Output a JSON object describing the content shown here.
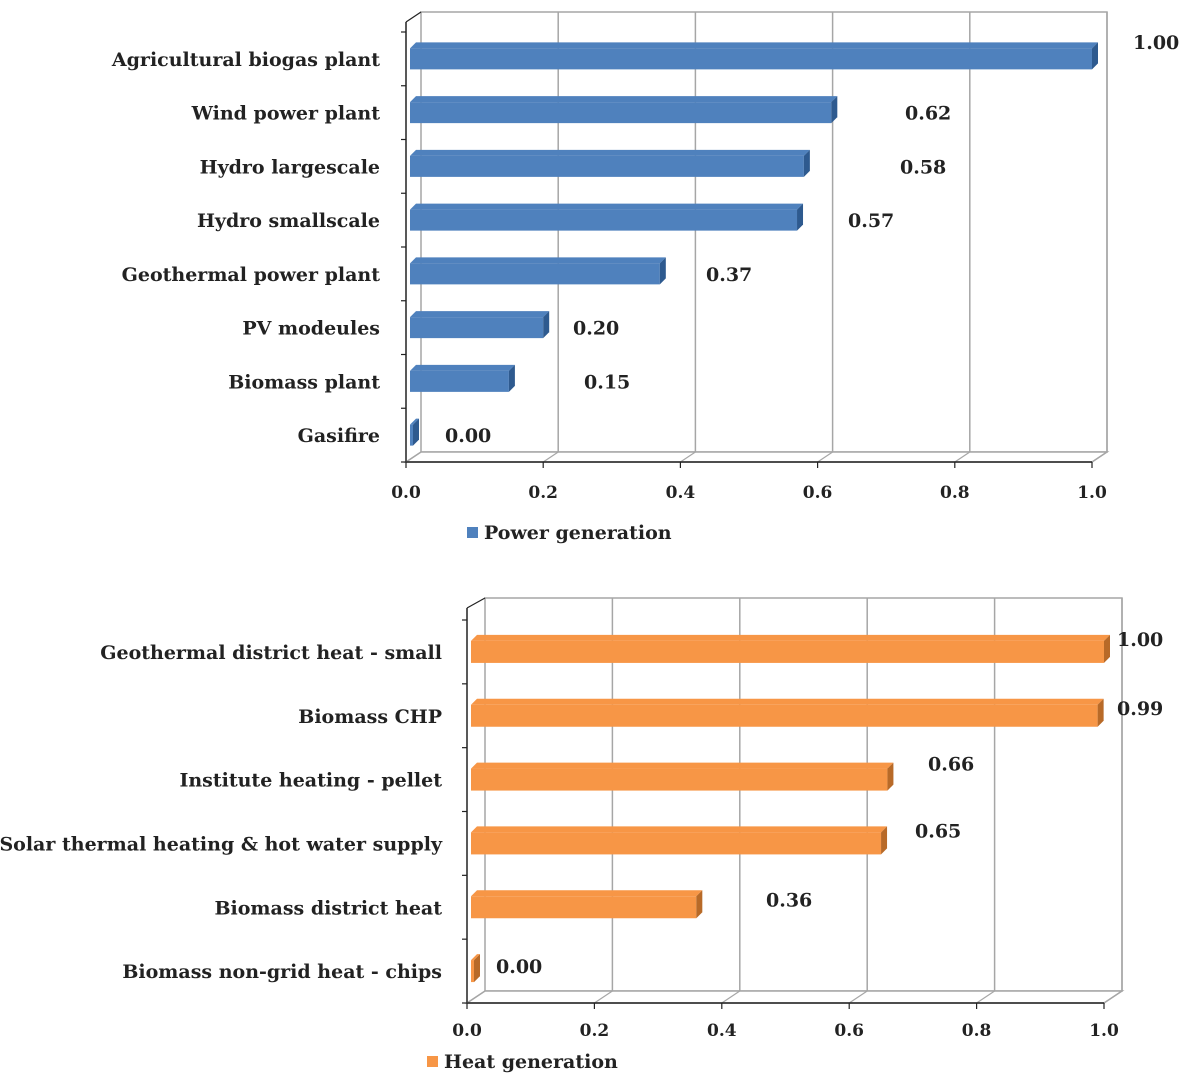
{
  "chart_data": [
    {
      "type": "bar",
      "orientation": "horizontal",
      "categories": [
        "Agricultural  biogas plant",
        "Wind power  plant",
        "Hydro largescale",
        "Hydro smallscale",
        "Geothermal power  plant",
        "PV modeules",
        "Biomass plant",
        "Gasifire"
      ],
      "series": [
        {
          "name": "Power generation",
          "values": [
            1.0,
            0.62,
            0.58,
            0.57,
            0.37,
            0.2,
            0.15,
            0.0
          ],
          "color": "#4f81bd",
          "dark_color": "#2e5a8f"
        }
      ],
      "data_labels": [
        "1.00",
        "0.62",
        "0.58",
        "0.57",
        "0.37",
        "0.20",
        "0.15",
        "0.00"
      ],
      "x_ticks": [
        "0.0",
        "0.2",
        "0.4",
        "0.6",
        "0.8",
        "1.0"
      ],
      "xlim": [
        0,
        1.0
      ],
      "grid": true,
      "legend_position": "bottom-left"
    },
    {
      "type": "bar",
      "orientation": "horizontal",
      "categories": [
        "Geothermal district  heat - small",
        "Biomass CHP",
        "Institute heating  - pellet",
        "Solar thermal heating & hot water supply",
        "Biomass district  heat",
        "Biomass non-grid  heat - chips"
      ],
      "series": [
        {
          "name": "Heat generation",
          "values": [
            1.0,
            0.99,
            0.66,
            0.65,
            0.36,
            0.0
          ],
          "color": "#f79646",
          "dark_color": "#b86a28"
        }
      ],
      "data_labels": [
        "1.00",
        "0.99",
        "0.66",
        "0.65",
        "0.36",
        "0.00"
      ],
      "x_ticks": [
        "0.0",
        "0.2",
        "0.4",
        "0.6",
        "0.8",
        "1.0"
      ],
      "xlim": [
        0,
        1.0
      ],
      "grid": true,
      "legend_position": "bottom-left"
    }
  ]
}
